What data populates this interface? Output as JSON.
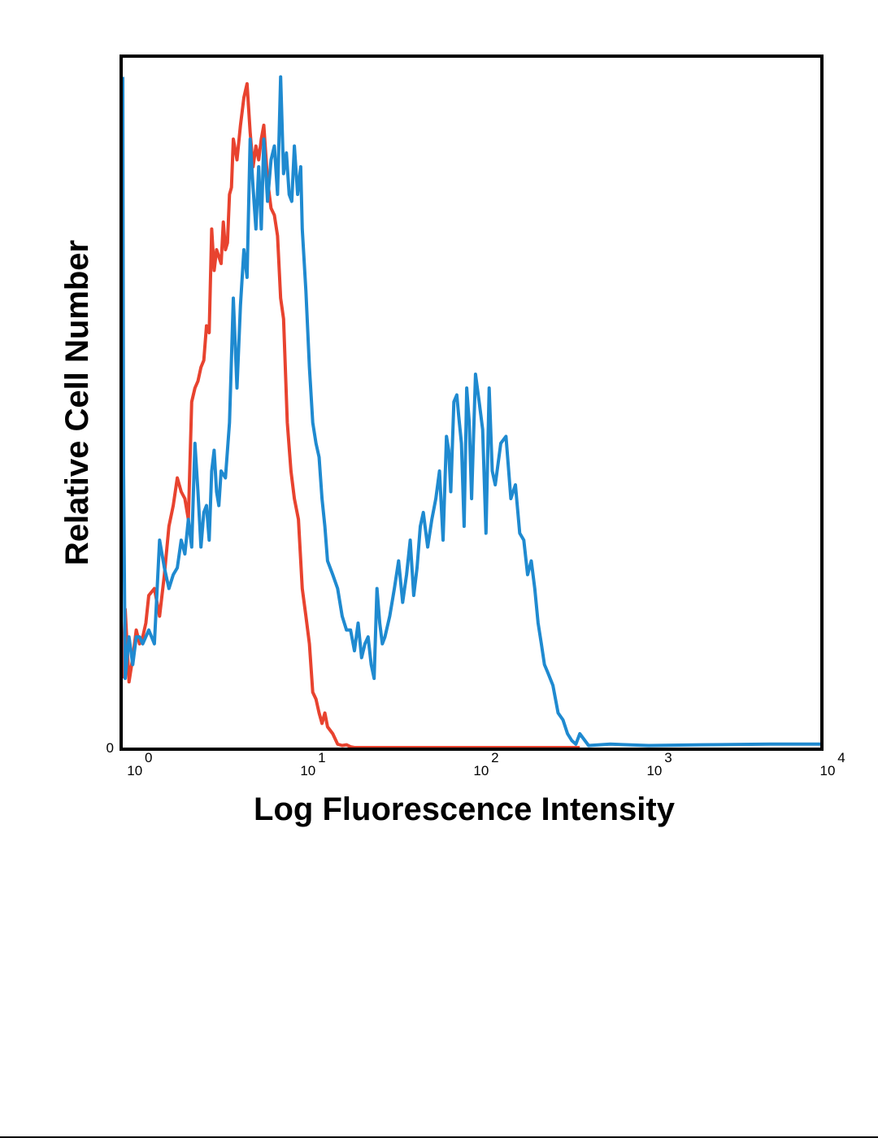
{
  "chart_data": {
    "type": "line",
    "title": "",
    "xlabel": "Log Fluorescence Intensity",
    "ylabel": "Relative Cell Number",
    "xscale": "log",
    "xlim": [
      0.9,
      10000
    ],
    "ylim": [
      0,
      100
    ],
    "grid": false,
    "legend": "none",
    "x_ticks": [
      {
        "value": 1,
        "base": "10",
        "exp": "0"
      },
      {
        "value": 10,
        "base": "10",
        "exp": "1"
      },
      {
        "value": 100,
        "base": "10",
        "exp": "2"
      },
      {
        "value": 1000,
        "base": "10",
        "exp": "3"
      },
      {
        "value": 10000,
        "base": "10",
        "exp": "4"
      }
    ],
    "y_ticks": [
      {
        "value": 0,
        "label": "0"
      }
    ],
    "series": [
      {
        "color": "#e8432f",
        "x": [
          0.92,
          0.95,
          1.0,
          1.05,
          1.1,
          1.15,
          1.2,
          1.25,
          1.3,
          1.4,
          1.5,
          1.6,
          1.7,
          1.8,
          1.9,
          2.0,
          2.1,
          2.2,
          2.3,
          2.4,
          2.5,
          2.6,
          2.7,
          2.8,
          2.9,
          3.0,
          3.1,
          3.2,
          3.3,
          3.4,
          3.5,
          3.6,
          3.7,
          3.8,
          3.9,
          4.0,
          4.2,
          4.4,
          4.6,
          4.8,
          5.0,
          5.2,
          5.4,
          5.6,
          5.8,
          6.0,
          6.3,
          6.6,
          6.9,
          7.2,
          7.5,
          7.8,
          8.2,
          8.6,
          9.0,
          9.5,
          10.0,
          10.5,
          11.0,
          11.5,
          12.0,
          12.5,
          13.0,
          13.5,
          14.0,
          15.0,
          16.0,
          17.0,
          18.0,
          19.0,
          20.0,
          25.0,
          30.0,
          50.0,
          100.0,
          200.0,
          400.0
        ],
        "y": [
          10.0,
          20.0,
          9.5,
          13.0,
          17.0,
          15.0,
          16.0,
          18.0,
          22.0,
          23.0,
          19.0,
          25.0,
          32.0,
          35.0,
          39.0,
          37.0,
          36.0,
          33.0,
          50.0,
          52.0,
          53.0,
          55.0,
          56.0,
          61.0,
          60.0,
          75.0,
          69.0,
          72.0,
          71.0,
          70.0,
          76.0,
          72.0,
          73.0,
          80.0,
          81.0,
          88.0,
          85.0,
          90.0,
          94.0,
          96.0,
          89.0,
          84.0,
          87.0,
          85.0,
          88.0,
          90.0,
          82.0,
          78.0,
          77.0,
          74.0,
          65.0,
          62.0,
          47.0,
          40.0,
          36.0,
          33.0,
          23.0,
          19.0,
          15.0,
          8.0,
          7.0,
          5.0,
          3.5,
          5.0,
          3.0,
          2.0,
          0.5,
          0.3,
          0.4,
          0.1,
          0.0,
          0.0,
          0.0,
          0.0,
          0.0,
          0.0,
          0.0
        ]
      },
      {
        "color": "#1f8ad0",
        "x": [
          0.92,
          0.93,
          0.95,
          1.0,
          1.05,
          1.1,
          1.15,
          1.2,
          1.3,
          1.4,
          1.5,
          1.6,
          1.7,
          1.8,
          1.9,
          2.0,
          2.1,
          2.2,
          2.3,
          2.4,
          2.5,
          2.6,
          2.7,
          2.8,
          2.9,
          3.0,
          3.1,
          3.2,
          3.3,
          3.4,
          3.6,
          3.8,
          4.0,
          4.2,
          4.4,
          4.6,
          4.8,
          5.0,
          5.2,
          5.4,
          5.6,
          5.8,
          6.0,
          6.3,
          6.6,
          6.9,
          7.2,
          7.5,
          7.8,
          8.1,
          8.4,
          8.7,
          9.0,
          9.4,
          9.8,
          10.0,
          10.5,
          11.0,
          11.5,
          12.0,
          12.5,
          13.0,
          13.5,
          14.0,
          15.0,
          16.0,
          17.0,
          18.0,
          19.0,
          20.0,
          21.0,
          22.0,
          23.0,
          24.0,
          25.0,
          26.0,
          27.0,
          28.0,
          29.0,
          30.0,
          32.0,
          34.0,
          36.0,
          38.0,
          40.0,
          42.0,
          44.0,
          46.0,
          48.0,
          50.0,
          53.0,
          56.0,
          59.0,
          62.0,
          65.0,
          68.0,
          70.0,
          72.0,
          75.0,
          78.0,
          80.0,
          83.0,
          86.0,
          89.0,
          92.0,
          95.0,
          100.0,
          105.0,
          110.0,
          115.0,
          120.0,
          125.0,
          130.0,
          140.0,
          150.0,
          160.0,
          170.0,
          180.0,
          190.0,
          200.0,
          210.0,
          220.0,
          230.0,
          240.0,
          250.0,
          260.0,
          280.0,
          300.0,
          320.0,
          340.0,
          360.0,
          380.0,
          400.0,
          450.0,
          600.0,
          1000.0,
          2000.0,
          5000.0,
          10000.0
        ],
        "y": [
          97.0,
          40.0,
          10.0,
          16.0,
          12.0,
          16.0,
          16.0,
          15.0,
          17.0,
          15.0,
          30.0,
          26.0,
          23.0,
          25.0,
          26.0,
          30.0,
          28.0,
          33.0,
          29.0,
          44.0,
          37.0,
          29.0,
          34.0,
          35.0,
          30.0,
          40.0,
          43.0,
          37.0,
          35.0,
          40.0,
          39.0,
          47.0,
          65.0,
          52.0,
          64.0,
          72.0,
          68.0,
          88.0,
          81.0,
          75.0,
          84.0,
          75.0,
          88.0,
          79.0,
          85.0,
          87.0,
          80.0,
          97.0,
          83.0,
          86.0,
          80.0,
          79.0,
          87.0,
          80.0,
          84.0,
          75.0,
          66.0,
          55.0,
          47.0,
          44.0,
          42.0,
          36.0,
          32.0,
          27.0,
          25.0,
          23.0,
          19.0,
          17.0,
          17.0,
          14.0,
          18.0,
          13.0,
          15.0,
          16.0,
          12.0,
          10.0,
          23.0,
          18.0,
          15.0,
          16.0,
          19.0,
          23.0,
          27.0,
          21.0,
          25.0,
          30.0,
          22.0,
          26.0,
          32.0,
          34.0,
          29.0,
          33.0,
          36.0,
          40.0,
          30.0,
          45.0,
          43.0,
          37.0,
          50.0,
          51.0,
          48.0,
          44.0,
          32.0,
          52.0,
          47.0,
          36.0,
          54.0,
          50.0,
          46.0,
          31.0,
          52.0,
          40.0,
          38.0,
          44.0,
          45.0,
          36.0,
          38.0,
          31.0,
          30.0,
          25.0,
          27.0,
          23.0,
          18.0,
          15.0,
          12.0,
          11.0,
          9.0,
          5.0,
          4.0,
          2.0,
          1.0,
          0.5,
          2.0,
          0.3,
          0.5,
          0.3,
          0.4,
          0.5,
          0.5
        ]
      }
    ]
  }
}
